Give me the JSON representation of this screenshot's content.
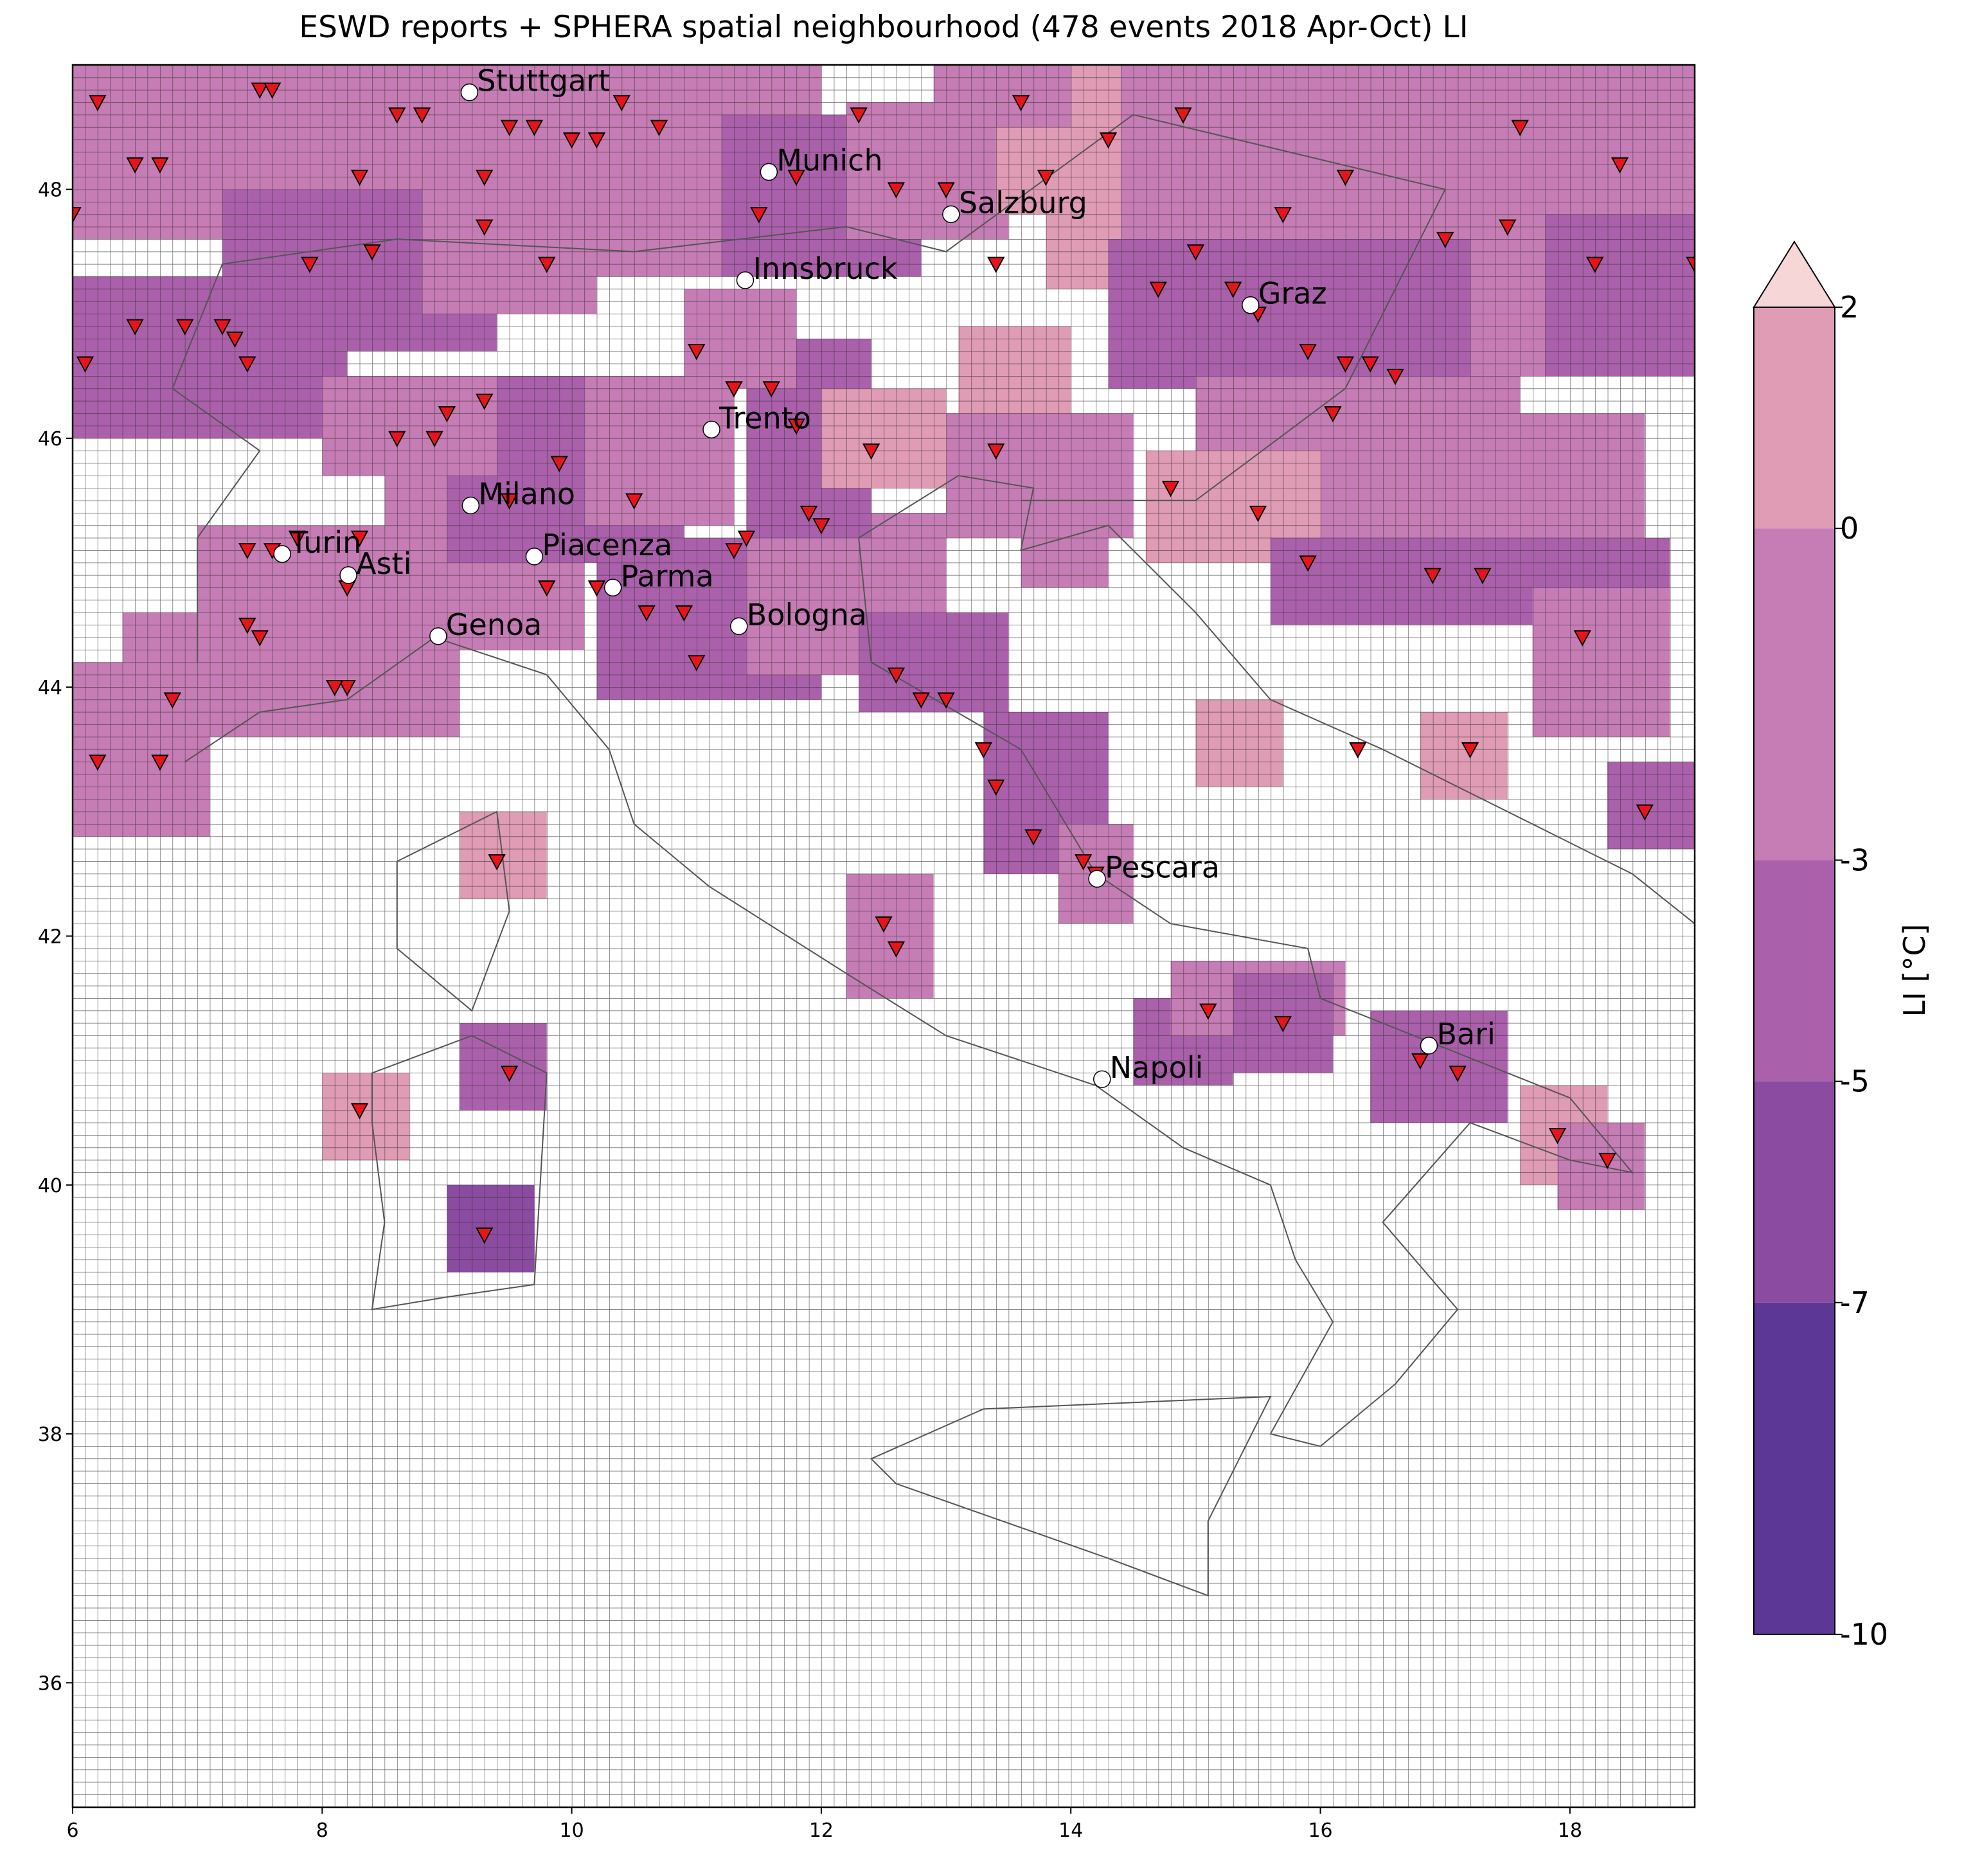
{
  "chart_data": {
    "type": "map",
    "title": "ESWD reports + SPHERA spatial neighbourhood (478 events 2018 Apr-Oct) LI",
    "xlim": [
      6,
      19
    ],
    "ylim": [
      35,
      49
    ],
    "xticks": [
      6,
      8,
      10,
      12,
      14,
      16,
      18
    ],
    "yticks": [
      36,
      38,
      40,
      42,
      44,
      46,
      48
    ],
    "colorbar": {
      "label": "LI  [°C]",
      "levels": [
        -10,
        -7,
        -5,
        -3,
        0,
        2
      ],
      "colors": [
        "#5c3795",
        "#8a4ba0",
        "#ab60ab",
        "#c67cb5",
        "#e09bb5"
      ],
      "extend_color": "#f6d6d6"
    },
    "patches": [
      {
        "x": [
          6,
          8.4
        ],
        "y": [
          48,
          49
        ],
        "value": -2
      },
      {
        "x": [
          8.4,
          12
        ],
        "y": [
          47.3,
          49
        ],
        "value": -2
      },
      {
        "x": [
          6,
          7.2
        ],
        "y": [
          47.6,
          48.3
        ],
        "value": -1
      },
      {
        "x": [
          7.2,
          9.4
        ],
        "y": [
          46.7,
          48
        ],
        "value": -4
      },
      {
        "x": [
          6,
          8.2
        ],
        "y": [
          46,
          47.3
        ],
        "value": -4
      },
      {
        "x": [
          8.8,
          10.2
        ],
        "y": [
          47,
          48
        ],
        "value": -3
      },
      {
        "x": [
          11.2,
          12.8
        ],
        "y": [
          47.3,
          48.6
        ],
        "value": -4
      },
      {
        "x": [
          12.2,
          13.5
        ],
        "y": [
          47.6,
          48.7
        ],
        "value": -2
      },
      {
        "x": [
          13.4,
          15
        ],
        "y": [
          47.8,
          49
        ],
        "value": 1
      },
      {
        "x": [
          12.9,
          14
        ],
        "y": [
          48.5,
          49
        ],
        "value": -2
      },
      {
        "x": [
          13.8,
          14.4
        ],
        "y": [
          47.2,
          48
        ],
        "value": 1
      },
      {
        "x": [
          14.4,
          19
        ],
        "y": [
          46.5,
          49
        ],
        "value": -3
      },
      {
        "x": [
          14.3,
          17.2
        ],
        "y": [
          46.4,
          47.6
        ],
        "value": -5
      },
      {
        "x": [
          15,
          17.6
        ],
        "y": [
          45.5,
          46.5
        ],
        "value": -2
      },
      {
        "x": [
          14.6,
          16.6
        ],
        "y": [
          45,
          45.9
        ],
        "value": 0
      },
      {
        "x": [
          16,
          18.6
        ],
        "y": [
          44.6,
          46.2
        ],
        "value": -3
      },
      {
        "x": [
          17.8,
          19
        ],
        "y": [
          46.5,
          47.8
        ],
        "value": -4
      },
      {
        "x": [
          15.6,
          18.8
        ],
        "y": [
          44.5,
          45.2
        ],
        "value": -4
      },
      {
        "x": [
          17.7,
          18.8
        ],
        "y": [
          43.6,
          44.8
        ],
        "value": -3
      },
      {
        "x": [
          18.3,
          19
        ],
        "y": [
          42.7,
          43.4
        ],
        "value": -5
      },
      {
        "x": [
          15,
          15.7
        ],
        "y": [
          43.2,
          43.9
        ],
        "value": 1
      },
      {
        "x": [
          16.8,
          17.5
        ],
        "y": [
          43.1,
          43.8
        ],
        "value": 1
      },
      {
        "x": [
          6,
          7.1
        ],
        "y": [
          42.8,
          44.2
        ],
        "value": -3
      },
      {
        "x": [
          6.4,
          7.5
        ],
        "y": [
          43.8,
          44.6
        ],
        "value": -3
      },
      {
        "x": [
          7,
          9.1
        ],
        "y": [
          43.6,
          45.3
        ],
        "value": -3
      },
      {
        "x": [
          8.5,
          10.1
        ],
        "y": [
          44.3,
          45.7
        ],
        "value": -3
      },
      {
        "x": [
          9,
          10.9
        ],
        "y": [
          45,
          46.5
        ],
        "value": -4
      },
      {
        "x": [
          8,
          9.4
        ],
        "y": [
          45.7,
          46.5
        ],
        "value": -3
      },
      {
        "x": [
          10.1,
          11.3
        ],
        "y": [
          45.3,
          46.5
        ],
        "value": -2
      },
      {
        "x": [
          10.2,
          12
        ],
        "y": [
          43.9,
          45.2
        ],
        "value": -4
      },
      {
        "x": [
          11.4,
          13
        ],
        "y": [
          44.1,
          45.4
        ],
        "value": -3
      },
      {
        "x": [
          12.3,
          13.5
        ],
        "y": [
          43.8,
          44.6
        ],
        "value": -5
      },
      {
        "x": [
          13.3,
          14.3
        ],
        "y": [
          42.5,
          43.8
        ],
        "value": -4
      },
      {
        "x": [
          13.9,
          14.5
        ],
        "y": [
          42.1,
          42.9
        ],
        "value": -2
      },
      {
        "x": [
          11.4,
          12.4
        ],
        "y": [
          45.2,
          46.8
        ],
        "value": -4
      },
      {
        "x": [
          12,
          13
        ],
        "y": [
          45.6,
          46.4
        ],
        "value": 1
      },
      {
        "x": [
          13.1,
          14
        ],
        "y": [
          46,
          46.9
        ],
        "value": 0
      },
      {
        "x": [
          13,
          14.5
        ],
        "y": [
          45.2,
          46.2
        ],
        "value": -3
      },
      {
        "x": [
          13.6,
          14.3
        ],
        "y": [
          44.8,
          45.5
        ],
        "value": -2
      },
      {
        "x": [
          12.2,
          12.9
        ],
        "y": [
          41.5,
          42.5
        ],
        "value": -3
      },
      {
        "x": [
          9.1,
          9.8
        ],
        "y": [
          42.3,
          43
        ],
        "value": 1
      },
      {
        "x": [
          8,
          8.7
        ],
        "y": [
          40.2,
          40.9
        ],
        "value": 1
      },
      {
        "x": [
          9.1,
          9.8
        ],
        "y": [
          40.6,
          41.3
        ],
        "value": -4
      },
      {
        "x": [
          9,
          9.7
        ],
        "y": [
          39.3,
          40
        ],
        "value": -6
      },
      {
        "x": [
          14.5,
          15.3
        ],
        "y": [
          40.8,
          41.5
        ],
        "value": -5
      },
      {
        "x": [
          14.8,
          16.2
        ],
        "y": [
          41.2,
          41.8
        ],
        "value": -2
      },
      {
        "x": [
          15.3,
          16.1
        ],
        "y": [
          40.9,
          41.7
        ],
        "value": -4
      },
      {
        "x": [
          16.4,
          17.5
        ],
        "y": [
          40.5,
          41.4
        ],
        "value": -4
      },
      {
        "x": [
          17.6,
          18.3
        ],
        "y": [
          40,
          40.8
        ],
        "value": 1
      },
      {
        "x": [
          17.9,
          18.6
        ],
        "y": [
          39.8,
          40.5
        ],
        "value": -2
      },
      {
        "x": [
          10.9,
          11.8
        ],
        "y": [
          46.4,
          47.2
        ],
        "value": -2
      }
    ],
    "events": {
      "color": "#e8141c",
      "x": [
        6.2,
        6.5,
        6.7,
        7.5,
        7.6,
        8.3,
        8.6,
        8.8,
        9.3,
        9.5,
        9.7,
        10.0,
        10.2,
        10.4,
        10.7,
        6.0,
        6.9,
        7.3,
        7.9,
        8.4,
        9.3,
        9.8,
        6.1,
        6.5,
        7.2,
        7.4,
        8.6,
        8.9,
        9.0,
        9.3,
        9.5,
        9.9,
        10.5,
        7.4,
        7.6,
        7.8,
        8.2,
        8.3,
        7.4,
        7.5,
        8.2,
        8.1,
        6.2,
        6.7,
        6.8,
        9.8,
        10.2,
        10.6,
        10.9,
        11.0,
        11.3,
        11.4,
        11.9,
        12.0,
        12.4,
        11.6,
        11.3,
        11.0,
        11.8,
        12.6,
        12.8,
        13.0,
        13.3,
        13.4,
        13.7,
        14.1,
        14.2,
        9.4,
        8.3,
        9.5,
        9.3,
        12.5,
        12.6,
        15.1,
        15.7,
        16.8,
        17.1,
        16.3,
        17.2,
        18.6,
        17.9,
        18.3,
        15.0,
        15.3,
        15.5,
        15.9,
        16.2,
        16.4,
        16.6,
        16.1,
        15.5,
        14.8,
        15.9,
        16.9,
        17.3,
        18.1,
        17.5,
        18.2,
        19.0,
        14.9,
        15.7,
        16.2,
        17.0,
        17.6,
        18.4,
        13.6,
        14.3,
        13.0,
        12.6,
        14.7,
        11.8,
        12.3,
        13.4,
        13.8,
        13.4,
        11.5
      ],
      "values": [
        48.7,
        48.2,
        48.2,
        48.8,
        48.8,
        48.1,
        48.6,
        48.6,
        48.1,
        48.5,
        48.5,
        48.4,
        48.4,
        48.7,
        48.5,
        47.8,
        46.9,
        46.8,
        47.4,
        47.5,
        47.7,
        47.4,
        46.6,
        46.9,
        46.9,
        46.6,
        46.0,
        46.0,
        46.2,
        46.3,
        45.5,
        45.8,
        45.5,
        45.1,
        45.1,
        45.2,
        44.8,
        45.2,
        44.5,
        44.4,
        44.0,
        44.0,
        43.4,
        43.4,
        43.9,
        44.8,
        44.8,
        44.6,
        44.6,
        44.2,
        45.1,
        45.2,
        45.4,
        45.3,
        45.9,
        46.4,
        46.4,
        46.7,
        46.1,
        44.1,
        43.9,
        43.9,
        43.5,
        43.2,
        42.8,
        42.6,
        42.5,
        42.6,
        40.6,
        40.9,
        39.6,
        42.1,
        41.9,
        41.4,
        41.3,
        41.0,
        40.9,
        43.5,
        43.5,
        43.0,
        40.4,
        40.2,
        47.5,
        47.2,
        47.0,
        46.7,
        46.6,
        46.6,
        46.5,
        46.2,
        45.4,
        45.6,
        45.0,
        44.9,
        44.9,
        44.4,
        47.7,
        47.4,
        47.4,
        48.6,
        47.8,
        48.1,
        47.6,
        48.5,
        48.2,
        48.7,
        48.4,
        48.0,
        48.0,
        47.2,
        48.1,
        48.6,
        47.4,
        48.1,
        45.9,
        47.8
      ]
    },
    "cities": {
      "names": [
        "Stuttgart",
        "Munich",
        "Salzburg",
        "Innsbruck",
        "Graz",
        "Trento",
        "Milano",
        "Turin",
        "Asti",
        "Piacenza",
        "Parma",
        "Genoa",
        "Bologna",
        "Pescara",
        "Bari",
        "Napoli"
      ],
      "x": [
        9.18,
        11.58,
        13.04,
        11.39,
        15.44,
        11.12,
        9.19,
        7.68,
        8.21,
        9.7,
        10.33,
        8.93,
        11.34,
        14.21,
        16.87,
        14.25
      ],
      "values": [
        48.78,
        48.14,
        47.8,
        47.27,
        47.07,
        46.07,
        45.46,
        45.07,
        44.9,
        45.05,
        44.8,
        44.41,
        44.49,
        42.46,
        41.12,
        40.85
      ]
    }
  }
}
